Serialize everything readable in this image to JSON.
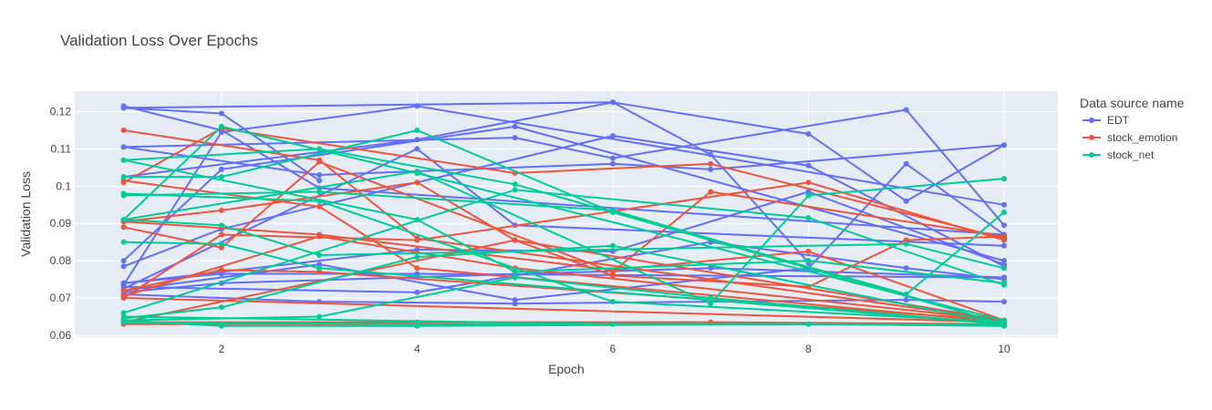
{
  "chart_data": {
    "type": "line",
    "title": "Validation Loss Over Epochs",
    "xlabel": "Epoch",
    "ylabel": "Validation Loss",
    "xlim": [
      0.5,
      10.55
    ],
    "ylim": [
      0.0595,
      0.1255
    ],
    "x_ticks": [
      2,
      4,
      6,
      8,
      10
    ],
    "x_tick_labels": [
      "2",
      "4",
      "6",
      "8",
      "10"
    ],
    "y_ticks": [
      0.06,
      0.07,
      0.08,
      0.09,
      0.1,
      0.11,
      0.12
    ],
    "y_tick_labels": [
      "0.06",
      "0.07",
      "0.08",
      "0.09",
      "0.1",
      "0.11",
      "0.12"
    ],
    "grid": true,
    "plot_background": "#e5ecf6",
    "legend": {
      "title": "Data source name",
      "position": "right"
    },
    "series": [
      {
        "name": "EDT",
        "color": "#636efa",
        "runs": [
          {
            "x": [
              1,
              2,
              3
            ],
            "y": [
              0.121,
              0.1195,
              0.1015
            ]
          },
          {
            "x": [
              1,
              6,
              7,
              8
            ],
            "y": [
              0.121,
              0.1225,
              0.1085,
              0.0795
            ]
          },
          {
            "x": [
              1,
              5,
              6,
              9,
              10
            ],
            "y": [
              0.1105,
              0.113,
              0.1075,
              0.1205,
              0.0895
            ]
          },
          {
            "x": [
              1,
              2,
              4,
              10
            ],
            "y": [
              0.0735,
              0.1145,
              0.1215,
              0.095
            ]
          },
          {
            "x": [
              1,
              2,
              5,
              10
            ],
            "y": [
              0.08,
              0.1045,
              0.116,
              0.08
            ]
          },
          {
            "x": [
              1,
              4,
              5,
              10
            ],
            "y": [
              0.0725,
              0.11,
              0.0895,
              0.084
            ]
          },
          {
            "x": [
              1,
              3,
              6,
              7,
              10
            ],
            "y": [
              0.1105,
              0.103,
              0.106,
              0.1045,
              0.111
            ]
          },
          {
            "x": [
              1,
              2,
              6,
              8,
              10
            ],
            "y": [
              0.0785,
              0.0885,
              0.1135,
              0.1055,
              0.0785
            ]
          },
          {
            "x": [
              1,
              2,
              4,
              10
            ],
            "y": [
              0.074,
              0.0765,
              0.0765,
              0.0755
            ]
          },
          {
            "x": [
              1,
              3,
              5,
              9,
              10
            ],
            "y": [
              0.071,
              0.069,
              0.0685,
              0.0695,
              0.069
            ]
          },
          {
            "x": [
              1,
              2,
              7,
              10
            ],
            "y": [
              0.0715,
              0.074,
              0.078,
              0.0755
            ]
          },
          {
            "x": [
              1,
              4,
              6,
              8,
              10
            ],
            "y": [
              0.074,
              0.083,
              0.0825,
              0.0985,
              0.079
            ]
          },
          {
            "x": [
              1,
              3,
              5,
              8,
              9,
              10
            ],
            "y": [
              0.072,
              0.079,
              0.0695,
              0.078,
              0.106,
              0.087
            ]
          },
          {
            "x": [
              1,
              4,
              7,
              9,
              10
            ],
            "y": [
              0.073,
              0.0715,
              0.085,
              0.078,
              0.075
            ]
          },
          {
            "x": [
              1,
              2,
              3,
              10
            ],
            "y": [
              0.1215,
              0.115,
              0.0995,
              0.087
            ]
          },
          {
            "x": [
              1,
              4,
              6,
              8,
              9,
              10
            ],
            "y": [
              0.1025,
              0.1125,
              0.1225,
              0.114,
              0.096,
              0.111
            ]
          }
        ]
      },
      {
        "name": "stock_emotion",
        "color": "#ef553b",
        "runs": [
          {
            "x": [
              1,
              3,
              4,
              10
            ],
            "y": [
              0.115,
              0.107,
              0.086,
              0.064
            ]
          },
          {
            "x": [
              1,
              2,
              5,
              7,
              10
            ],
            "y": [
              0.101,
              0.1155,
              0.1035,
              0.106,
              0.086
            ]
          },
          {
            "x": [
              1,
              2,
              3,
              10
            ],
            "y": [
              0.072,
              0.0775,
              0.077,
              0.064
            ]
          },
          {
            "x": [
              1,
              2,
              4,
              8,
              10
            ],
            "y": [
              0.07,
              0.087,
              0.0855,
              0.101,
              0.0855
            ]
          },
          {
            "x": [
              1,
              2,
              3,
              6,
              7,
              10
            ],
            "y": [
              0.089,
              0.0835,
              0.1065,
              0.077,
              0.0985,
              0.0865
            ]
          },
          {
            "x": [
              1,
              3,
              5,
              10
            ],
            "y": [
              0.0705,
              0.0865,
              0.078,
              0.064
            ]
          },
          {
            "x": [
              1,
              2,
              4,
              5,
              10
            ],
            "y": [
              0.0905,
              0.0935,
              0.101,
              0.0855,
              0.064
            ]
          },
          {
            "x": [
              1,
              3,
              4,
              10
            ],
            "y": [
              0.1015,
              0.0945,
              0.078,
              0.0635
            ]
          },
          {
            "x": [
              1,
              5,
              6,
              8,
              9,
              10
            ],
            "y": [
              0.0635,
              0.0855,
              0.076,
              0.073,
              0.0855,
              0.0865
            ]
          },
          {
            "x": [
              1,
              4,
              7,
              10
            ],
            "y": [
              0.0635,
              0.0635,
              0.0635,
              0.063
            ]
          },
          {
            "x": [
              1,
              10
            ],
            "y": [
              0.07,
              0.0635
            ]
          },
          {
            "x": [
              1,
              2,
              3,
              10
            ],
            "y": [
              0.063,
              0.063,
              0.063,
              0.063
            ]
          },
          {
            "x": [
              1,
              3,
              6,
              8,
              10
            ],
            "y": [
              0.0905,
              0.087,
              0.0775,
              0.0825,
              0.064
            ]
          }
        ]
      },
      {
        "name": "stock_net",
        "color": "#00cc96",
        "runs": [
          {
            "x": [
              1,
              2,
              4,
              10
            ],
            "y": [
              0.091,
              0.116,
              0.1035,
              0.064
            ]
          },
          {
            "x": [
              1,
              3,
              5,
              10
            ],
            "y": [
              0.107,
              0.11,
              0.1005,
              0.063
            ]
          },
          {
            "x": [
              1,
              2,
              4,
              6,
              9,
              10
            ],
            "y": [
              0.1025,
              0.1025,
              0.115,
              0.093,
              0.071,
              0.093
            ]
          },
          {
            "x": [
              1,
              3,
              6,
              10
            ],
            "y": [
              0.0975,
              0.0985,
              0.0935,
              0.063
            ]
          },
          {
            "x": [
              1,
              4,
              7,
              8,
              10
            ],
            "y": [
              0.091,
              0.104,
              0.0685,
              0.0975,
              0.102
            ]
          },
          {
            "x": [
              1,
              2,
              3,
              10
            ],
            "y": [
              0.085,
              0.0845,
              0.078,
              0.063
            ]
          },
          {
            "x": [
              1,
              5,
              8,
              10
            ],
            "y": [
              0.066,
              0.099,
              0.0915,
              0.0735
            ]
          },
          {
            "x": [
              1,
              2,
              4,
              6,
              10
            ],
            "y": [
              0.0645,
              0.0675,
              0.081,
              0.084,
              0.063
            ]
          },
          {
            "x": [
              1,
              3,
              5,
              7,
              10
            ],
            "y": [
              0.064,
              0.065,
              0.0755,
              0.07,
              0.063
            ]
          },
          {
            "x": [
              1,
              2,
              4,
              8,
              10
            ],
            "y": [
              0.064,
              0.0625,
              0.0625,
              0.063,
              0.0625
            ]
          },
          {
            "x": [
              1,
              4,
              6,
              10
            ],
            "y": [
              0.0635,
              0.063,
              0.063,
              0.063
            ]
          },
          {
            "x": [
              1,
              3,
              6,
              10
            ],
            "y": [
              0.098,
              0.096,
              0.069,
              0.0635
            ]
          },
          {
            "x": [
              1,
              2,
              3,
              9,
              10
            ],
            "y": [
              0.091,
              0.0895,
              0.0815,
              0.0845,
              0.078
            ]
          },
          {
            "x": [
              1,
              4,
              5,
              8,
              10
            ],
            "y": [
              0.107,
              0.091,
              0.077,
              0.08,
              0.074
            ]
          },
          {
            "x": [
              1,
              6,
              8,
              10
            ],
            "y": [
              0.065,
              0.063,
              0.063,
              0.0625
            ]
          }
        ]
      }
    ]
  }
}
